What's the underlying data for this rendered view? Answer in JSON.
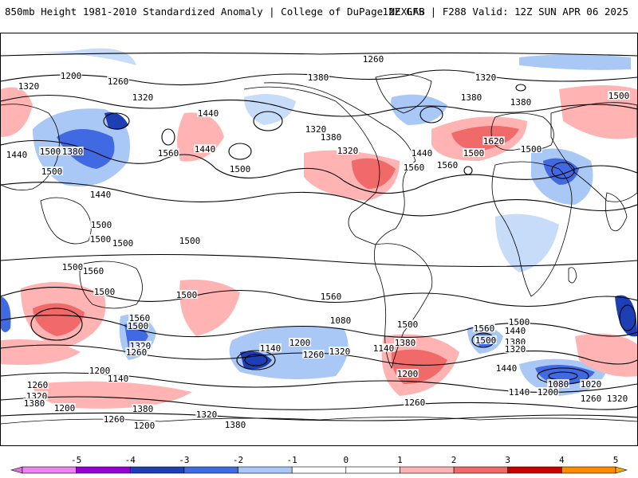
{
  "header": {
    "title": "850mb Height 1981-2010 Standardized Anomaly | College of DuPage NEXLAB",
    "run_info": "12Z GFS | F288 Valid: 12Z SUN APR 06 2025"
  },
  "map": {
    "projection": "global-cylindrical",
    "background_color": "#ffffff",
    "coastline_color": "#000000",
    "contour_color": "#000000",
    "contour_labels": [
      "1260",
      "1200",
      "1320",
      "1260",
      "1320",
      "1380",
      "1320",
      "1380",
      "1500",
      "1440",
      "1380",
      "1320",
      "1440",
      "1500",
      "1440",
      "1500",
      "1380",
      "1560",
      "1500",
      "1380",
      "1320",
      "1440",
      "1500",
      "1560",
      "1620",
      "1560",
      "1500",
      "1440",
      "1500",
      "1500",
      "1500",
      "1500",
      "1560",
      "1500",
      "1500",
      "1500",
      "1560",
      "1560",
      "1500",
      "1320",
      "1260",
      "1140",
      "1200",
      "1080",
      "1320",
      "1260",
      "1140",
      "1380",
      "1500",
      "1500",
      "1440",
      "1560",
      "1500",
      "1380",
      "1320",
      "1200",
      "1260",
      "1440",
      "1080",
      "1020",
      "1140",
      "1200",
      "1260",
      "1320",
      "1380",
      "1200",
      "1200",
      "1140",
      "1260",
      "1320",
      "1380",
      "1200",
      "1260",
      "1320",
      "1380"
    ]
  },
  "colorbar": {
    "tick_labels": [
      "-5",
      "-4",
      "-3",
      "-2",
      "-1",
      "0",
      "1",
      "2",
      "3",
      "4",
      "5"
    ],
    "colors": [
      "#ee82ee",
      "#9400d3",
      "#1e3fb4",
      "#4169e1",
      "#a9c8f5",
      "#ffffff",
      "#ffffff",
      "#ffb3b3",
      "#f06a6a",
      "#c80000",
      "#ff8c00"
    ],
    "min_arrow_color": "#e070e0",
    "max_arrow_color": "#ffa500",
    "range": [
      -5,
      5
    ]
  }
}
